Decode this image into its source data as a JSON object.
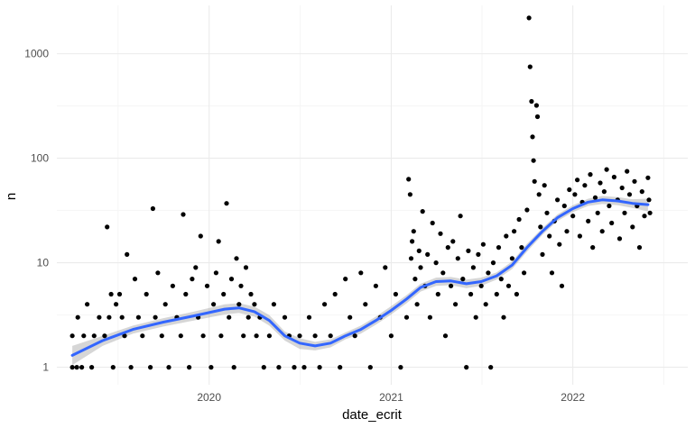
{
  "chart_data": {
    "type": "scatter",
    "title": "",
    "xlabel": "date_ecrit",
    "ylabel": "n",
    "x_scale": "date",
    "y_scale": "log10",
    "xlim": [
      "2019-03-01",
      "2022-08-20"
    ],
    "ylim": [
      0.68,
      2900
    ],
    "x_ticks": [
      {
        "value": "2020-01-01",
        "label": "2020"
      },
      {
        "value": "2021-01-01",
        "label": "2021"
      },
      {
        "value": "2022-01-01",
        "label": "2022"
      }
    ],
    "y_ticks": [
      {
        "value": 1,
        "label": "1"
      },
      {
        "value": 10,
        "label": "10"
      },
      {
        "value": 100,
        "label": "100"
      },
      {
        "value": 1000,
        "label": "1000"
      }
    ],
    "grid": true,
    "legend": "none",
    "colors": {
      "points": "#000000",
      "smooth_line": "#3366ff",
      "confidence_band": "#999999",
      "grid_major": "#ebebeb",
      "grid_minor": "#f5f5f5"
    },
    "series": [
      {
        "kind": "points",
        "points": [
          [
            "2019-04-01",
            1
          ],
          [
            "2019-04-01",
            2
          ],
          [
            "2019-04-10",
            1
          ],
          [
            "2019-04-12",
            3
          ],
          [
            "2019-04-20",
            1
          ],
          [
            "2019-04-24",
            2
          ],
          [
            "2019-05-01",
            4
          ],
          [
            "2019-05-10",
            1
          ],
          [
            "2019-05-15",
            2
          ],
          [
            "2019-05-25",
            3
          ],
          [
            "2019-06-05",
            2
          ],
          [
            "2019-06-10",
            22
          ],
          [
            "2019-06-14",
            3
          ],
          [
            "2019-06-18",
            5
          ],
          [
            "2019-06-22",
            1
          ],
          [
            "2019-06-28",
            4
          ],
          [
            "2019-07-05",
            5
          ],
          [
            "2019-07-10",
            3
          ],
          [
            "2019-07-15",
            2
          ],
          [
            "2019-07-20",
            12
          ],
          [
            "2019-07-28",
            1
          ],
          [
            "2019-08-05",
            7
          ],
          [
            "2019-08-12",
            3
          ],
          [
            "2019-08-20",
            2
          ],
          [
            "2019-08-28",
            5
          ],
          [
            "2019-09-05",
            1
          ],
          [
            "2019-09-10",
            33
          ],
          [
            "2019-09-15",
            3
          ],
          [
            "2019-09-20",
            8
          ],
          [
            "2019-09-28",
            2
          ],
          [
            "2019-10-05",
            4
          ],
          [
            "2019-10-12",
            1
          ],
          [
            "2019-10-20",
            6
          ],
          [
            "2019-10-28",
            3
          ],
          [
            "2019-11-05",
            2
          ],
          [
            "2019-11-10",
            29
          ],
          [
            "2019-11-15",
            5
          ],
          [
            "2019-11-22",
            1
          ],
          [
            "2019-11-28",
            7
          ],
          [
            "2019-12-05",
            9
          ],
          [
            "2019-12-10",
            3
          ],
          [
            "2019-12-15",
            18
          ],
          [
            "2019-12-20",
            2
          ],
          [
            "2019-12-28",
            6
          ],
          [
            "2020-01-05",
            1
          ],
          [
            "2020-01-10",
            4
          ],
          [
            "2020-01-15",
            8
          ],
          [
            "2020-01-20",
            16
          ],
          [
            "2020-01-25",
            2
          ],
          [
            "2020-01-30",
            5
          ],
          [
            "2020-02-05",
            37
          ],
          [
            "2020-02-10",
            3
          ],
          [
            "2020-02-15",
            7
          ],
          [
            "2020-02-20",
            1
          ],
          [
            "2020-02-25",
            11
          ],
          [
            "2020-03-01",
            4
          ],
          [
            "2020-03-05",
            6
          ],
          [
            "2020-03-10",
            2
          ],
          [
            "2020-03-15",
            9
          ],
          [
            "2020-03-20",
            3
          ],
          [
            "2020-03-25",
            5
          ],
          [
            "2020-04-01",
            4
          ],
          [
            "2020-04-05",
            2
          ],
          [
            "2020-04-12",
            3
          ],
          [
            "2020-04-20",
            1
          ],
          [
            "2020-05-01",
            2
          ],
          [
            "2020-05-10",
            4
          ],
          [
            "2020-05-20",
            1
          ],
          [
            "2020-06-01",
            3
          ],
          [
            "2020-06-10",
            2
          ],
          [
            "2020-06-20",
            1
          ],
          [
            "2020-07-01",
            2
          ],
          [
            "2020-07-10",
            1
          ],
          [
            "2020-07-20",
            3
          ],
          [
            "2020-08-01",
            2
          ],
          [
            "2020-08-10",
            1
          ],
          [
            "2020-08-20",
            4
          ],
          [
            "2020-09-01",
            2
          ],
          [
            "2020-09-10",
            5
          ],
          [
            "2020-09-20",
            1
          ],
          [
            "2020-10-01",
            7
          ],
          [
            "2020-10-10",
            3
          ],
          [
            "2020-10-20",
            2
          ],
          [
            "2020-11-01",
            8
          ],
          [
            "2020-11-10",
            4
          ],
          [
            "2020-11-20",
            1
          ],
          [
            "2020-12-01",
            6
          ],
          [
            "2020-12-10",
            3
          ],
          [
            "2020-12-20",
            9
          ],
          [
            "2021-01-01",
            2
          ],
          [
            "2021-01-10",
            5
          ],
          [
            "2021-01-20",
            1
          ],
          [
            "2021-02-01",
            3
          ],
          [
            "2021-02-05",
            63
          ],
          [
            "2021-02-08",
            45
          ],
          [
            "2021-02-10",
            11
          ],
          [
            "2021-02-12",
            16
          ],
          [
            "2021-02-15",
            20
          ],
          [
            "2021-02-18",
            7
          ],
          [
            "2021-02-22",
            4
          ],
          [
            "2021-02-26",
            13
          ],
          [
            "2021-03-01",
            9
          ],
          [
            "2021-03-05",
            31
          ],
          [
            "2021-03-10",
            6
          ],
          [
            "2021-03-15",
            12
          ],
          [
            "2021-03-20",
            3
          ],
          [
            "2021-03-25",
            24
          ],
          [
            "2021-04-01",
            10
          ],
          [
            "2021-04-05",
            5
          ],
          [
            "2021-04-10",
            19
          ],
          [
            "2021-04-15",
            8
          ],
          [
            "2021-04-20",
            2
          ],
          [
            "2021-04-25",
            14
          ],
          [
            "2021-05-01",
            6
          ],
          [
            "2021-05-05",
            16
          ],
          [
            "2021-05-10",
            4
          ],
          [
            "2021-05-15",
            11
          ],
          [
            "2021-05-20",
            28
          ],
          [
            "2021-05-25",
            7
          ],
          [
            "2021-06-01",
            1
          ],
          [
            "2021-06-05",
            13
          ],
          [
            "2021-06-10",
            5
          ],
          [
            "2021-06-15",
            9
          ],
          [
            "2021-06-20",
            3
          ],
          [
            "2021-06-25",
            12
          ],
          [
            "2021-07-01",
            6
          ],
          [
            "2021-07-05",
            15
          ],
          [
            "2021-07-10",
            4
          ],
          [
            "2021-07-15",
            8
          ],
          [
            "2021-07-20",
            1
          ],
          [
            "2021-07-25",
            10
          ],
          [
            "2021-08-01",
            5
          ],
          [
            "2021-08-05",
            14
          ],
          [
            "2021-08-10",
            7
          ],
          [
            "2021-08-15",
            3
          ],
          [
            "2021-08-20",
            18
          ],
          [
            "2021-08-25",
            6
          ],
          [
            "2021-09-01",
            11
          ],
          [
            "2021-09-05",
            20
          ],
          [
            "2021-09-10",
            5
          ],
          [
            "2021-09-15",
            26
          ],
          [
            "2021-09-20",
            14
          ],
          [
            "2021-09-25",
            8
          ],
          [
            "2021-10-01",
            32
          ],
          [
            "2021-10-05",
            2200
          ],
          [
            "2021-10-07",
            750
          ],
          [
            "2021-10-10",
            350
          ],
          [
            "2021-10-12",
            160
          ],
          [
            "2021-10-14",
            95
          ],
          [
            "2021-10-16",
            60
          ],
          [
            "2021-10-20",
            320
          ],
          [
            "2021-10-22",
            250
          ],
          [
            "2021-10-25",
            45
          ],
          [
            "2021-10-28",
            22
          ],
          [
            "2021-11-01",
            12
          ],
          [
            "2021-11-05",
            55
          ],
          [
            "2021-11-10",
            30
          ],
          [
            "2021-11-15",
            18
          ],
          [
            "2021-11-20",
            8
          ],
          [
            "2021-11-25",
            25
          ],
          [
            "2021-12-01",
            40
          ],
          [
            "2021-12-05",
            15
          ],
          [
            "2021-12-10",
            6
          ],
          [
            "2021-12-15",
            35
          ],
          [
            "2021-12-20",
            20
          ],
          [
            "2021-12-25",
            50
          ],
          [
            "2022-01-01",
            28
          ],
          [
            "2022-01-05",
            45
          ],
          [
            "2022-01-10",
            62
          ],
          [
            "2022-01-15",
            18
          ],
          [
            "2022-01-20",
            38
          ],
          [
            "2022-01-25",
            55
          ],
          [
            "2022-02-01",
            25
          ],
          [
            "2022-02-05",
            70
          ],
          [
            "2022-02-10",
            14
          ],
          [
            "2022-02-15",
            42
          ],
          [
            "2022-02-20",
            30
          ],
          [
            "2022-02-25",
            58
          ],
          [
            "2022-03-01",
            20
          ],
          [
            "2022-03-05",
            48
          ],
          [
            "2022-03-10",
            78
          ],
          [
            "2022-03-15",
            35
          ],
          [
            "2022-03-20",
            24
          ],
          [
            "2022-03-25",
            66
          ],
          [
            "2022-04-01",
            40
          ],
          [
            "2022-04-05",
            17
          ],
          [
            "2022-04-10",
            52
          ],
          [
            "2022-04-15",
            30
          ],
          [
            "2022-04-20",
            75
          ],
          [
            "2022-04-25",
            45
          ],
          [
            "2022-05-01",
            22
          ],
          [
            "2022-05-05",
            60
          ],
          [
            "2022-05-10",
            35
          ],
          [
            "2022-05-15",
            14
          ],
          [
            "2022-05-20",
            48
          ],
          [
            "2022-05-25",
            28
          ],
          [
            "2022-06-01",
            65
          ],
          [
            "2022-06-03",
            40
          ],
          [
            "2022-06-05",
            30
          ]
        ]
      },
      {
        "kind": "smooth",
        "method": "loess",
        "points": [
          [
            "2019-04-01",
            1.3
          ],
          [
            "2019-06-01",
            1.8
          ],
          [
            "2019-08-01",
            2.3
          ],
          [
            "2019-10-01",
            2.7
          ],
          [
            "2019-12-01",
            3.1
          ],
          [
            "2020-02-01",
            3.6
          ],
          [
            "2020-03-01",
            3.7
          ],
          [
            "2020-04-01",
            3.4
          ],
          [
            "2020-05-01",
            2.8
          ],
          [
            "2020-06-01",
            2.0
          ],
          [
            "2020-07-01",
            1.7
          ],
          [
            "2020-08-01",
            1.6
          ],
          [
            "2020-09-01",
            1.7
          ],
          [
            "2020-10-01",
            2.0
          ],
          [
            "2020-11-01",
            2.3
          ],
          [
            "2020-12-01",
            2.8
          ],
          [
            "2021-01-01",
            3.5
          ],
          [
            "2021-02-01",
            4.5
          ],
          [
            "2021-03-01",
            5.8
          ],
          [
            "2021-04-01",
            6.6
          ],
          [
            "2021-05-01",
            6.7
          ],
          [
            "2021-06-01",
            6.3
          ],
          [
            "2021-07-01",
            6.6
          ],
          [
            "2021-08-01",
            7.5
          ],
          [
            "2021-09-01",
            9.5
          ],
          [
            "2021-10-01",
            14
          ],
          [
            "2021-11-01",
            20
          ],
          [
            "2021-12-01",
            27
          ],
          [
            "2022-01-01",
            33
          ],
          [
            "2022-02-01",
            38
          ],
          [
            "2022-03-01",
            40
          ],
          [
            "2022-04-01",
            39
          ],
          [
            "2022-05-01",
            37
          ],
          [
            "2022-06-01",
            36
          ]
        ],
        "ci_lower": [
          1.05,
          1.6,
          2.1,
          2.45,
          2.8,
          3.2,
          3.3,
          3.05,
          2.5,
          1.8,
          1.5,
          1.45,
          1.55,
          1.85,
          2.1,
          2.55,
          3.2,
          4.1,
          5.3,
          6.0,
          6.1,
          5.7,
          6.0,
          6.9,
          8.7,
          12.8,
          18.5,
          25,
          30.5,
          35,
          36.5,
          35.5,
          33.5,
          31
        ],
        "ci_upper": [
          1.6,
          2.0,
          2.5,
          2.95,
          3.4,
          4.0,
          4.1,
          3.8,
          3.15,
          2.2,
          1.9,
          1.75,
          1.85,
          2.15,
          2.5,
          3.05,
          3.85,
          4.9,
          6.3,
          7.2,
          7.3,
          6.9,
          7.2,
          8.1,
          10.3,
          15.2,
          21.5,
          29,
          35.5,
          41,
          43.5,
          42.5,
          40.5,
          41
        ]
      }
    ]
  }
}
